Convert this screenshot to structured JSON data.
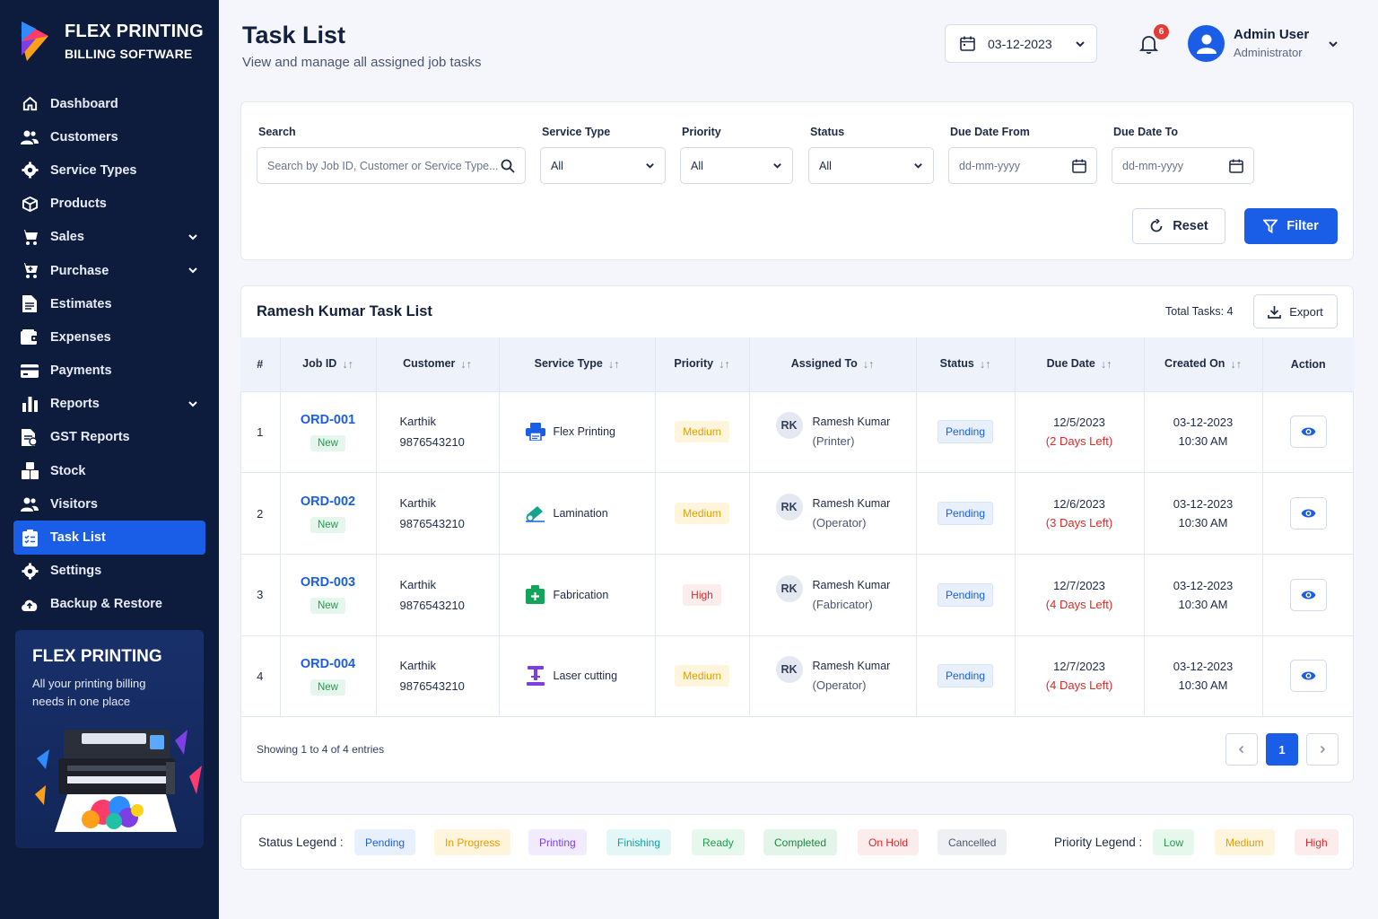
{
  "brand": {
    "title": "FLEX PRINTING",
    "subtitle": "BILLING SOFTWARE"
  },
  "sidebar": {
    "items": [
      {
        "label": "Dashboard",
        "icon": "home-icon"
      },
      {
        "label": "Customers",
        "icon": "users-icon"
      },
      {
        "label": "Service Types",
        "icon": "gear-icon"
      },
      {
        "label": "Products",
        "icon": "box-icon"
      },
      {
        "label": "Sales",
        "icon": "cart-icon",
        "expandable": true
      },
      {
        "label": "Purchase",
        "icon": "cart-plus-icon",
        "expandable": true
      },
      {
        "label": "Estimates",
        "icon": "file-icon"
      },
      {
        "label": "Expenses",
        "icon": "wallet-icon"
      },
      {
        "label": "Payments",
        "icon": "card-icon"
      },
      {
        "label": "Reports",
        "icon": "bar-chart-icon",
        "expandable": true
      },
      {
        "label": "GST Reports",
        "icon": "gst-file-icon"
      },
      {
        "label": "Stock",
        "icon": "stock-icon"
      },
      {
        "label": "Visitors",
        "icon": "visitors-icon"
      },
      {
        "label": "Task List",
        "icon": "task-list-icon",
        "active": true
      },
      {
        "label": "Settings",
        "icon": "settings-icon"
      },
      {
        "label": "Backup & Restore",
        "icon": "cloud-backup-icon"
      }
    ],
    "promo": {
      "title": "FLEX PRINTING",
      "text": "All your printing billing needs in one place"
    }
  },
  "header": {
    "title": "Task List",
    "subtitle": "View and manage all assigned job tasks",
    "date": "03-12-2023",
    "notifications": "6",
    "user_name": "Admin User",
    "user_role": "Administrator"
  },
  "filters": {
    "search_label": "Search",
    "search_placeholder": "Search by Job ID, Customer or Service Type...",
    "service_type_label": "Service Type",
    "service_type_value": "All",
    "priority_label": "Priority",
    "priority_value": "All",
    "status_label": "Status",
    "status_value": "All",
    "due_from_label": "Due Date From",
    "due_from_placeholder": "dd-mm-yyyy",
    "due_to_label": "Due Date To",
    "due_to_placeholder": "dd-mm-yyyy",
    "reset_label": "Reset",
    "filter_label": "Filter"
  },
  "table": {
    "title": "Ramesh Kumar Task List",
    "total": "Total Tasks: 4",
    "export_label": "Export",
    "headers": [
      "#",
      "Job ID",
      "Customer",
      "Service Type",
      "Priority",
      "Assigned To",
      "Status",
      "Due Date",
      "Created On",
      "Action"
    ],
    "rows": [
      {
        "num": "1",
        "job_id": "ORD-001",
        "job_badge": "New",
        "customer": "Karthik",
        "phone": "9876543210",
        "service": "Flex Printing",
        "service_icon": "printer-icon",
        "priority": "Medium",
        "initials": "RK",
        "assignee": "Ramesh Kumar",
        "role": "(Printer)",
        "status": "Pending",
        "due": "12/5/2023",
        "due_left": "(2 Days Left)",
        "created_date": "03-12-2023",
        "created_time": "10:30 AM"
      },
      {
        "num": "2",
        "job_id": "ORD-002",
        "job_badge": "New",
        "customer": "Karthik",
        "phone": "9876543210",
        "service": "Lamination",
        "service_icon": "lamination-icon",
        "priority": "Medium",
        "initials": "RK",
        "assignee": "Ramesh Kumar",
        "role": "(Operator)",
        "status": "Pending",
        "due": "12/6/2023",
        "due_left": "(3 Days Left)",
        "created_date": "03-12-2023",
        "created_time": "10:30 AM"
      },
      {
        "num": "3",
        "job_id": "ORD-003",
        "job_badge": "New",
        "customer": "Karthik",
        "phone": "9876543210",
        "service": "Fabrication",
        "service_icon": "fabrication-icon",
        "priority": "High",
        "initials": "RK",
        "assignee": "Ramesh Kumar",
        "role": "(Fabricator)",
        "status": "Pending",
        "due": "12/7/2023",
        "due_left": "(4 Days Left)",
        "created_date": "03-12-2023",
        "created_time": "10:30 AM"
      },
      {
        "num": "4",
        "job_id": "ORD-004",
        "job_badge": "New",
        "customer": "Karthik",
        "phone": "9876543210",
        "service": "Laser cutting",
        "service_icon": "laser-cutting-icon",
        "priority": "Medium",
        "initials": "RK",
        "assignee": "Ramesh Kumar",
        "role": "(Operator)",
        "status": "Pending",
        "due": "12/7/2023",
        "due_left": "(4 Days Left)",
        "created_date": "03-12-2023",
        "created_time": "10:30 AM"
      }
    ],
    "showing": "Showing 1 to 4 of 4 entries",
    "current_page": "1"
  },
  "legend": {
    "status_label": "Status Legend :",
    "statuses": [
      {
        "label": "Pending",
        "color": "#1a5ee8",
        "bg": "#e8f0fe"
      },
      {
        "label": "In Progress",
        "color": "#e89a00",
        "bg": "#fff4dc"
      },
      {
        "label": "Printing",
        "color": "#7b3fe4",
        "bg": "#f1ebfd"
      },
      {
        "label": "Finishing",
        "color": "#13a3a3",
        "bg": "#e4f6f6"
      },
      {
        "label": "Ready",
        "color": "#1b9e4b",
        "bg": "#e6f7ec"
      },
      {
        "label": "Completed",
        "color": "#1b8a3f",
        "bg": "#e3f5e8"
      },
      {
        "label": "On Hold",
        "color": "#e02828",
        "bg": "#fdecec"
      },
      {
        "label": "Cancelled",
        "color": "#4a5670",
        "bg": "#eef0f4"
      }
    ],
    "priority_label": "Priority Legend :",
    "priorities": [
      {
        "label": "Low",
        "color": "#1b9e4b",
        "bg": "#e6f7ec"
      },
      {
        "label": "Medium",
        "color": "#e0a100",
        "bg": "#fff4dc"
      },
      {
        "label": "High",
        "color": "#e02828",
        "bg": "#fdecec"
      }
    ]
  }
}
